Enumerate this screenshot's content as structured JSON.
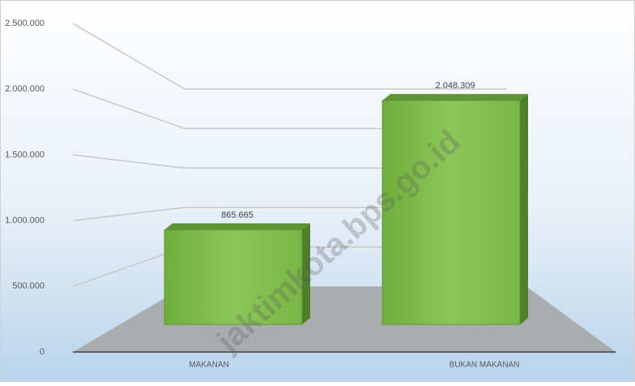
{
  "chart_data": {
    "type": "bar3d",
    "categories": [
      "MAKANAN",
      "BUKAN MAKANAN"
    ],
    "values": [
      865665,
      2048309
    ],
    "value_labels": [
      "865.665",
      "2.048.309"
    ],
    "color": "#7dbb4a",
    "ylim": [
      0,
      2500000
    ],
    "yticks": [
      0,
      {
        "value": 500000,
        "label": "500.000"
      },
      {
        "value": 1000000,
        "label": "1.000.000"
      },
      {
        "value": 1500000,
        "label": "1.500.000"
      },
      {
        "value": 2000000,
        "label": "2.000.000"
      },
      {
        "value": 2500000,
        "label": "2.500.000"
      }
    ],
    "grid": true,
    "watermark": "jaktimkota.bps.go.id"
  }
}
